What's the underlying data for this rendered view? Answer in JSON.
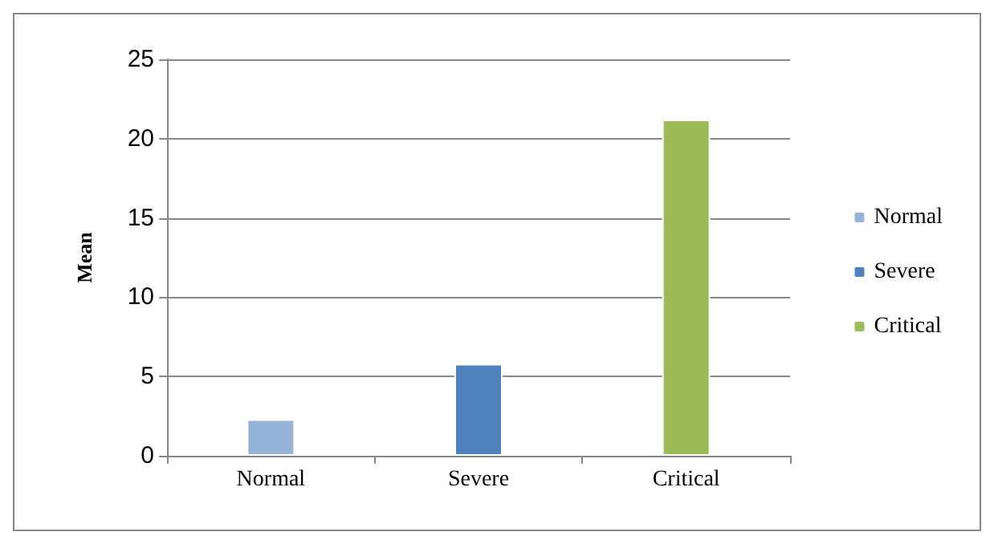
{
  "chart_data": {
    "type": "bar",
    "ylabel": "Mean",
    "categories": [
      "Normal",
      "Severe",
      "Critical"
    ],
    "series": [
      {
        "name": "Normal",
        "color": "#95b3d7",
        "values": [
          2.3,
          null,
          null
        ]
      },
      {
        "name": "Severe",
        "color": "#4f81bd",
        "values": [
          null,
          5.8,
          null
        ]
      },
      {
        "name": "Critical",
        "color": "#9bbb59",
        "values": [
          null,
          null,
          21.2
        ]
      }
    ],
    "ylim": [
      0,
      25
    ],
    "yticks": [
      0,
      5,
      10,
      15,
      20,
      25
    ],
    "grid": "y",
    "legend": "right"
  }
}
